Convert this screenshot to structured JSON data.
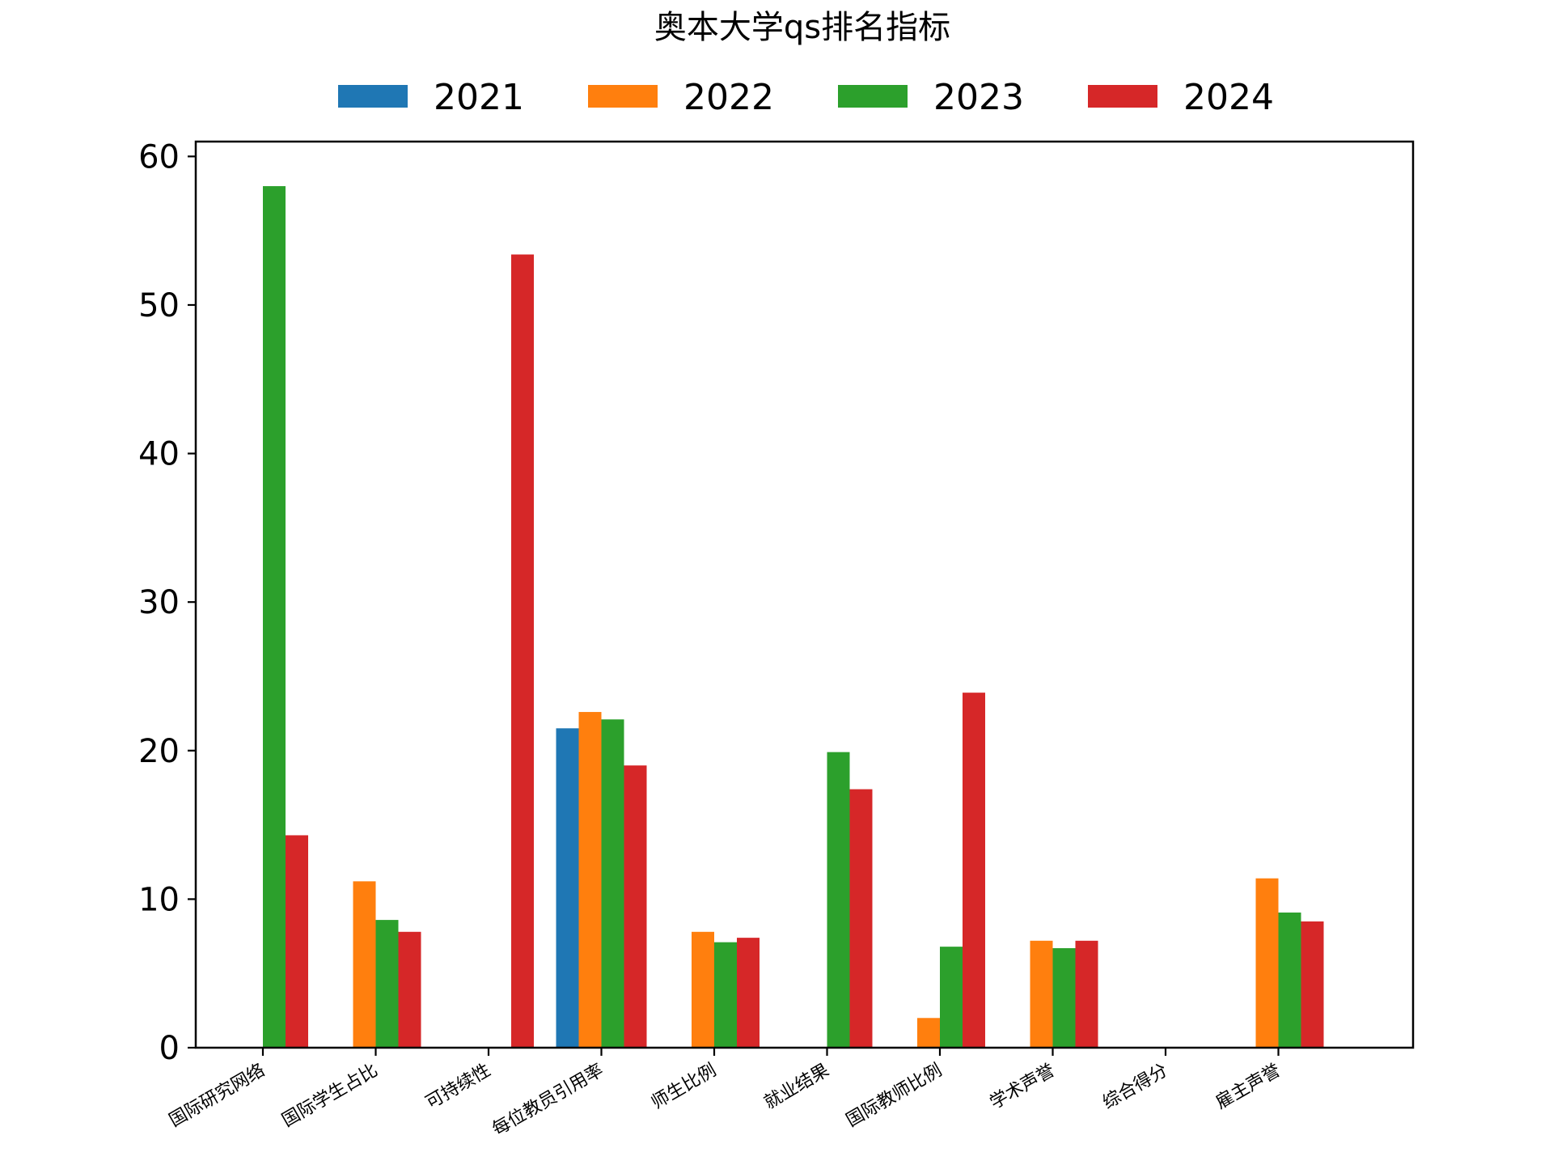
{
  "chart_data": {
    "type": "bar",
    "title": "奥本大学qs排名指标",
    "xlabel": "",
    "ylabel": "",
    "ylim": [
      0,
      61
    ],
    "yticks": [
      0,
      10,
      20,
      30,
      40,
      50,
      60
    ],
    "grid": false,
    "legend_position": "top-center",
    "categories": [
      "国际研究网络",
      "国际学生占比",
      "可持续性",
      "每位教员引用率",
      "师生比例",
      "就业结果",
      "国际教师比例",
      "学术声誉",
      "综合得分",
      "雇主声誉"
    ],
    "series": [
      {
        "name": "2021",
        "color": "#1f77b4",
        "values": [
          null,
          null,
          null,
          21.5,
          null,
          null,
          null,
          null,
          null,
          null
        ]
      },
      {
        "name": "2022",
        "color": "#ff7f0e",
        "values": [
          null,
          11.2,
          null,
          22.6,
          7.8,
          null,
          2.0,
          7.2,
          null,
          11.4
        ]
      },
      {
        "name": "2023",
        "color": "#2ca02c",
        "values": [
          58.0,
          8.6,
          null,
          22.1,
          7.1,
          19.9,
          6.8,
          6.7,
          null,
          9.1
        ]
      },
      {
        "name": "2024",
        "color": "#d62728",
        "values": [
          14.3,
          7.8,
          53.4,
          19.0,
          7.4,
          17.4,
          23.9,
          7.2,
          null,
          8.5
        ]
      }
    ]
  }
}
